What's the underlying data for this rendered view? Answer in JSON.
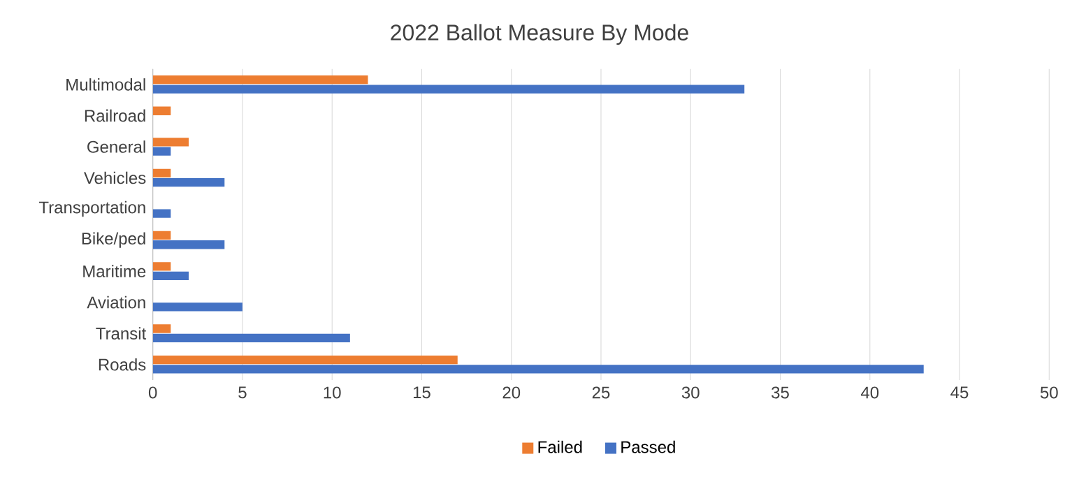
{
  "chart_data": {
    "type": "bar",
    "orientation": "horizontal",
    "title": "2022 Ballot Measure By Mode",
    "categories": [
      "Multimodal",
      "Railroad",
      "General",
      "Vehicles",
      "Transportation",
      "Bike/ped",
      "Maritime",
      "Aviation",
      "Transit",
      "Roads"
    ],
    "series": [
      {
        "name": "Failed",
        "color": "#ed7d31",
        "values": [
          12,
          1,
          2,
          1,
          0,
          1,
          1,
          0,
          1,
          17
        ]
      },
      {
        "name": "Passed",
        "color": "#4472c4",
        "values": [
          33,
          0,
          1,
          4,
          1,
          4,
          2,
          5,
          11,
          43
        ]
      }
    ],
    "xlim": [
      0,
      50
    ],
    "xticks": [
      0,
      5,
      10,
      15,
      20,
      25,
      30,
      35,
      40,
      45,
      50
    ],
    "grid": "x",
    "legend": "bottom"
  }
}
